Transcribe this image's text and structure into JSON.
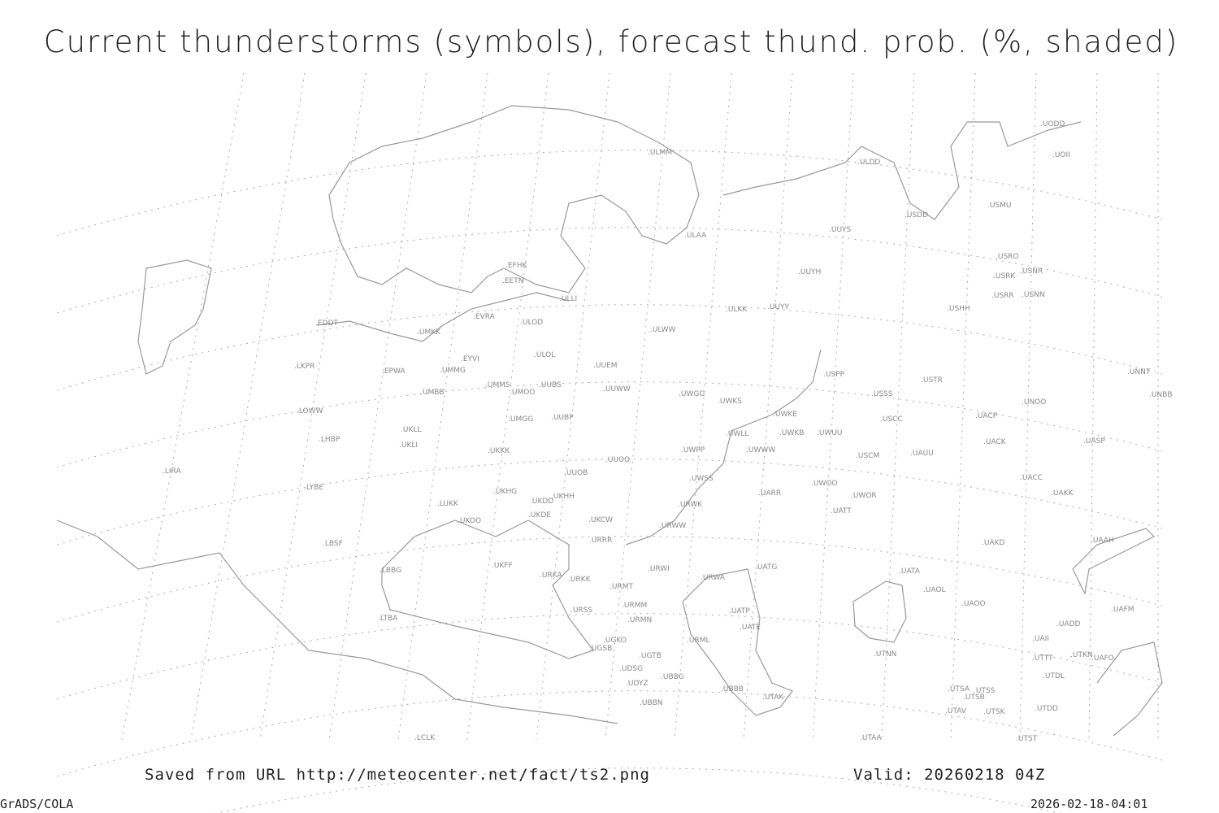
{
  "title": "Current thunderstorms (symbols), forecast thund. prob. (%, shaded)",
  "footer": {
    "saved_from": "Saved from URL http://meteocenter.net/fact/ts2.png",
    "valid": "Valid: 20260218 04Z",
    "credit": "GrADS/COLA",
    "timestamp": "2026-02-18-04:01"
  },
  "colors": {
    "coastline": "#999999",
    "grid": "#aaaaaa",
    "station_label": "#888888"
  },
  "stations": [
    "EFHK",
    "EETN",
    "ULLI",
    "EVRA",
    "ULOD",
    "EDDT",
    "UMKK",
    "EYVI",
    "ULOL",
    "UUEM",
    "LKPR",
    "EPWA",
    "UMMG",
    "UMMS",
    "UMOO",
    "UUBS",
    "UUWW",
    "UMBB",
    "LOWW",
    "UMGG",
    "UUBP",
    "UKLL",
    "LHBP",
    "UKLI",
    "UKKK",
    "UUOO",
    "UUOB",
    "LYBE",
    "UKHG",
    "UKHH",
    "UKDD",
    "LUKK",
    "UKDE",
    "UKOO",
    "UKCW",
    "LIRA",
    "LBSF",
    "URRR",
    "UKFF",
    "URKA",
    "URKK",
    "LBBG",
    "URWI",
    "URMT",
    "URSS",
    "URMM",
    "URMN",
    "LTBA",
    "UGKO",
    "UGSB",
    "UGTB",
    "UDSG",
    "UBBG",
    "UDYZ",
    "UBBN",
    "LCLK",
    "URML",
    "ULMM",
    "ULDD",
    "USDD",
    "USMU",
    "ULAA",
    "UUYS",
    "UUYH",
    "USRO",
    "USRK",
    "USNR",
    "USRR",
    "USNN",
    "USHH",
    "ULKK",
    "UUYY",
    "ULWW",
    "USPP",
    "USTR",
    "UNNT",
    "UNBB",
    "UWGG",
    "UWKS",
    "USSS",
    "UNOO",
    "UWKE",
    "USCC",
    "UACP",
    "UWLL",
    "UWKB",
    "UWUU",
    "UASP",
    "UACK",
    "UWPP",
    "UWWW",
    "USCM",
    "UAUU",
    "UACC",
    "UWSS",
    "UAKK",
    "UARR",
    "UWOO",
    "UWOR",
    "URWK",
    "UATT",
    "URWW",
    "UAKD",
    "UAAH",
    "UATG",
    "UATA",
    "URWA",
    "UAOL",
    "UAOO",
    "UATP",
    "UAFM",
    "UATE",
    "UADD",
    "UAII",
    "UTNN",
    "UTTT",
    "UTKN",
    "UAFO",
    "UTDL",
    "UBBB",
    "UTSA",
    "UTSS",
    "UTSB",
    "UTAK",
    "UTAV",
    "UTSK",
    "UTDD",
    "UTST",
    "UTAA",
    "UODD",
    "UOII"
  ]
}
